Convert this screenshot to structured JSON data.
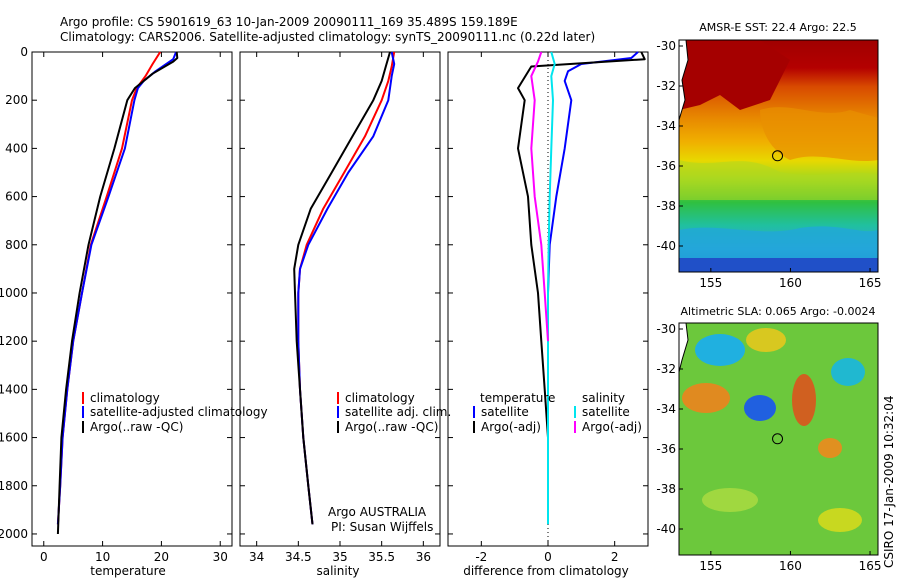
{
  "title_line1": "Argo profile: CS 5901619_63 10-Jan-2009 20090111_169 35.489S 159.189E",
  "title_line2": "Climatology: CARS2006. Satellite-adjusted climatology: synTS_20090111.nc (0.22d later)",
  "side_label": "CSIRO 17-Jan-2009 10:32:04",
  "colors": {
    "red": "#ff0000",
    "blue": "#0000ff",
    "black": "#000000",
    "cyan": "#00e5ee",
    "magenta": "#ff00ff"
  },
  "chart_data": [
    {
      "type": "line",
      "xlabel": "temperature",
      "xlim": [
        -2,
        32
      ],
      "ylim": [
        0,
        2050
      ],
      "y_reversed": true,
      "xticks": [
        0,
        10,
        20,
        30
      ],
      "yticks": [
        0,
        200,
        400,
        600,
        800,
        1000,
        1200,
        1400,
        1600,
        1800,
        2000
      ],
      "legend": [
        "climatology",
        "satellite-adjusted climatology",
        "Argo(..raw -QC)"
      ],
      "series": [
        {
          "name": "climatology",
          "color": "red",
          "points": [
            [
              19.8,
              0
            ],
            [
              18.5,
              50
            ],
            [
              17.3,
              100
            ],
            [
              15.8,
              150
            ],
            [
              15.0,
              200
            ],
            [
              13.3,
              400
            ],
            [
              10.7,
              600
            ],
            [
              8.0,
              800
            ],
            [
              6.5,
              1000
            ],
            [
              5.0,
              1200
            ],
            [
              4.0,
              1400
            ],
            [
              3.2,
              1600
            ],
            [
              2.8,
              1800
            ],
            [
              2.4,
              1960
            ]
          ]
        },
        {
          "name": "satellite-adjusted climatology",
          "color": "blue",
          "points": [
            [
              22.5,
              0
            ],
            [
              22.0,
              30
            ],
            [
              19.0,
              80
            ],
            [
              17.0,
              120
            ],
            [
              16.0,
              150
            ],
            [
              15.4,
              200
            ],
            [
              13.8,
              400
            ],
            [
              11.0,
              600
            ],
            [
              8.1,
              800
            ],
            [
              6.5,
              1000
            ],
            [
              5.0,
              1200
            ],
            [
              4.0,
              1400
            ],
            [
              3.2,
              1600
            ],
            [
              2.8,
              1800
            ],
            [
              2.4,
              1960
            ]
          ]
        },
        {
          "name": "Argo(..raw -QC)",
          "color": "black",
          "points": [
            [
              22.6,
              0
            ],
            [
              22.7,
              25
            ],
            [
              22.0,
              40
            ],
            [
              18.5,
              90
            ],
            [
              15.5,
              150
            ],
            [
              14.2,
              200
            ],
            [
              12.0,
              400
            ],
            [
              9.6,
              600
            ],
            [
              7.6,
              800
            ],
            [
              6.1,
              1000
            ],
            [
              4.8,
              1200
            ],
            [
              3.8,
              1400
            ],
            [
              3.0,
              1600
            ],
            [
              2.7,
              1800
            ],
            [
              2.4,
              2000
            ]
          ]
        }
      ]
    },
    {
      "type": "line",
      "xlabel": "salinity",
      "xlim": [
        33.8,
        36.2
      ],
      "ylim": [
        0,
        2050
      ],
      "y_reversed": true,
      "xticks": [
        34,
        34.5,
        35,
        35.5,
        36
      ],
      "legend": [
        "climatology",
        "satellite adj. clim.",
        "Argo(..raw -QC)"
      ],
      "annotations": [
        "Argo AUSTRALIA",
        "PI: Susan Wijffels"
      ],
      "series": [
        {
          "name": "climatology",
          "color": "red",
          "points": [
            [
              35.65,
              0
            ],
            [
              35.62,
              60
            ],
            [
              35.58,
              120
            ],
            [
              35.5,
              200
            ],
            [
              35.3,
              350
            ],
            [
              35.05,
              500
            ],
            [
              34.8,
              650
            ],
            [
              34.6,
              800
            ],
            [
              34.52,
              900
            ],
            [
              34.5,
              1000
            ],
            [
              34.5,
              1200
            ],
            [
              34.52,
              1400
            ],
            [
              34.56,
              1600
            ],
            [
              34.62,
              1800
            ],
            [
              34.67,
              1960
            ]
          ]
        },
        {
          "name": "satellite adj. clim.",
          "color": "blue",
          "points": [
            [
              35.62,
              0
            ],
            [
              35.65,
              50
            ],
            [
              35.62,
              100
            ],
            [
              35.58,
              200
            ],
            [
              35.4,
              350
            ],
            [
              35.1,
              500
            ],
            [
              34.85,
              650
            ],
            [
              34.62,
              800
            ],
            [
              34.52,
              900
            ],
            [
              34.5,
              1000
            ],
            [
              34.5,
              1200
            ],
            [
              34.52,
              1400
            ],
            [
              34.56,
              1600
            ],
            [
              34.62,
              1800
            ],
            [
              34.67,
              1960
            ]
          ]
        },
        {
          "name": "Argo(..raw -QC)",
          "color": "black",
          "points": [
            [
              35.6,
              0
            ],
            [
              35.55,
              60
            ],
            [
              35.5,
              120
            ],
            [
              35.4,
              200
            ],
            [
              35.15,
              350
            ],
            [
              34.9,
              500
            ],
            [
              34.65,
              650
            ],
            [
              34.5,
              800
            ],
            [
              34.45,
              900
            ],
            [
              34.46,
              1000
            ],
            [
              34.48,
              1200
            ],
            [
              34.52,
              1400
            ],
            [
              34.56,
              1600
            ],
            [
              34.62,
              1800
            ],
            [
              34.67,
              1960
            ]
          ]
        }
      ]
    },
    {
      "type": "line",
      "xlabel": "difference from climatology",
      "xlim": [
        -3,
        3
      ],
      "ylim": [
        0,
        2050
      ],
      "y_reversed": true,
      "xticks": [
        -2,
        0,
        2
      ],
      "legend_temperature": {
        "heading": "temperature",
        "items": [
          "satellite",
          "Argo(-adj)"
        ]
      },
      "legend_salinity": {
        "heading": "salinity",
        "items": [
          "satellite",
          "Argo(-adj)"
        ]
      },
      "series": [
        {
          "name": "temperature satellite",
          "color": "blue",
          "points": [
            [
              2.7,
              0
            ],
            [
              2.5,
              25
            ],
            [
              1.0,
              50
            ],
            [
              0.6,
              80
            ],
            [
              0.5,
              120
            ],
            [
              0.7,
              200
            ],
            [
              0.5,
              400
            ],
            [
              0.25,
              600
            ],
            [
              0.05,
              800
            ],
            [
              0,
              1000
            ],
            [
              0,
              1200
            ],
            [
              0,
              1400
            ],
            [
              0,
              1600
            ],
            [
              0,
              1800
            ],
            [
              0,
              1950
            ]
          ]
        },
        {
          "name": "temperature Argo(-adj)",
          "color": "black",
          "points": [
            [
              2.8,
              0
            ],
            [
              2.9,
              30
            ],
            [
              -0.5,
              60
            ],
            [
              -0.9,
              150
            ],
            [
              -0.7,
              200
            ],
            [
              -0.9,
              400
            ],
            [
              -0.6,
              600
            ],
            [
              -0.5,
              800
            ],
            [
              -0.3,
              1000
            ],
            [
              -0.2,
              1200
            ],
            [
              -0.1,
              1400
            ],
            [
              0,
              1600
            ],
            [
              0,
              1800
            ],
            [
              0,
              1950
            ]
          ]
        },
        {
          "name": "salinity satellite",
          "color": "cyan",
          "points": [
            [
              0.1,
              0
            ],
            [
              0.2,
              50
            ],
            [
              0.1,
              100
            ],
            [
              0.15,
              200
            ],
            [
              0.1,
              400
            ],
            [
              0.05,
              600
            ],
            [
              0.02,
              800
            ],
            [
              0,
              1000
            ],
            [
              0,
              1200
            ],
            [
              0,
              1400
            ],
            [
              0,
              1600
            ],
            [
              0,
              1800
            ],
            [
              0,
              1960
            ]
          ]
        },
        {
          "name": "salinity Argo(-adj)",
          "color": "magenta",
          "points": [
            [
              -0.2,
              0
            ],
            [
              -0.3,
              40
            ],
            [
              -0.5,
              100
            ],
            [
              -0.4,
              200
            ],
            [
              -0.5,
              400
            ],
            [
              -0.4,
              600
            ],
            [
              -0.2,
              800
            ],
            [
              -0.1,
              1000
            ],
            [
              0,
              1200
            ]
          ]
        }
      ]
    },
    {
      "type": "heatmap",
      "title": "AMSR-E SST: 22.4 Argo: 22.5",
      "xlim": [
        153,
        165.5
      ],
      "ylim": [
        -41.3,
        -29.7
      ],
      "xticks": [
        155,
        160,
        165
      ],
      "yticks": [
        -30,
        -32,
        -34,
        -36,
        -38,
        -40
      ],
      "marker": {
        "lon": 159.189,
        "lat": -35.489
      }
    },
    {
      "type": "heatmap",
      "title": "Altimetric SLA: 0.065 Argo: -0.0024",
      "xlim": [
        153,
        165.5
      ],
      "ylim": [
        -41.3,
        -29.7
      ],
      "xticks": [
        155,
        160,
        165
      ],
      "yticks": [
        -30,
        -32,
        -34,
        -36,
        -38,
        -40
      ],
      "marker": {
        "lon": 159.189,
        "lat": -35.489
      }
    }
  ]
}
